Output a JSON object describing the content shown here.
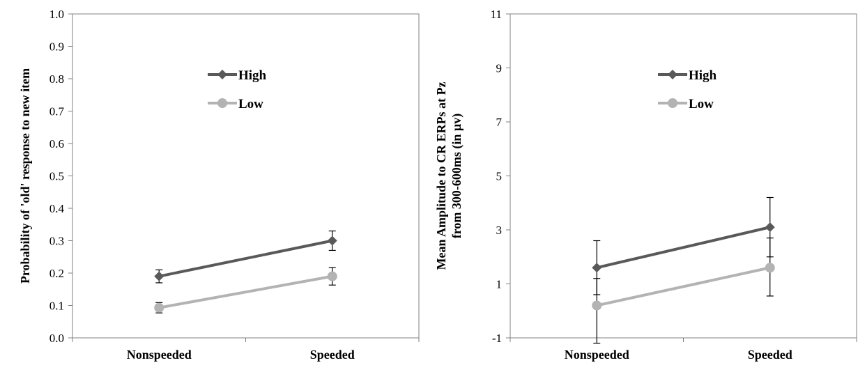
{
  "colors": {
    "high": "#595959",
    "low": "#b3b3b3",
    "axis": "#808080",
    "errbar": "#000000"
  },
  "chart_data": [
    {
      "type": "line",
      "title": "",
      "xlabel": "",
      "ylabel": "Probability of 'old' response to new item",
      "ylabel_lines": [
        "Probability of 'old' response to new item"
      ],
      "categories": [
        "Nonspeeded",
        "Speeded"
      ],
      "ylim": [
        0.0,
        1.0
      ],
      "yticks": [
        "0.0",
        "0.1",
        "0.2",
        "0.3",
        "0.4",
        "0.5",
        "0.6",
        "0.7",
        "0.8",
        "0.9",
        "1.0"
      ],
      "grid": false,
      "legend": "top-center",
      "series": [
        {
          "name": "High",
          "marker": "diamond",
          "values": [
            0.19,
            0.3
          ],
          "err_low": [
            0.17,
            0.27
          ],
          "err_high": [
            0.21,
            0.33
          ]
        },
        {
          "name": "Low",
          "marker": "circle",
          "values": [
            0.093,
            0.19
          ],
          "err_low": [
            0.077,
            0.163
          ],
          "err_high": [
            0.109,
            0.217
          ]
        }
      ]
    },
    {
      "type": "line",
      "title": "",
      "xlabel": "",
      "ylabel": "Mean Amplitude to CR ERPs at Pz from 300-600ms (in µv)",
      "ylabel_lines": [
        "Mean Amplitude to CR ERPs at Pz",
        "from 300-600ms (in µv)"
      ],
      "categories": [
        "Nonspeeded",
        "Speeded"
      ],
      "ylim": [
        -1,
        11
      ],
      "yticks": [
        "-1",
        "1",
        "3",
        "5",
        "7",
        "9",
        "11"
      ],
      "grid": false,
      "legend": "top-center",
      "series": [
        {
          "name": "High",
          "marker": "diamond",
          "values": [
            1.6,
            3.1
          ],
          "err_low": [
            0.6,
            2.0
          ],
          "err_high": [
            2.6,
            4.2
          ]
        },
        {
          "name": "Low",
          "marker": "circle",
          "values": [
            0.2,
            1.6
          ],
          "err_low": [
            -1.2,
            0.55
          ],
          "err_high": [
            1.2,
            2.7
          ]
        }
      ]
    }
  ]
}
